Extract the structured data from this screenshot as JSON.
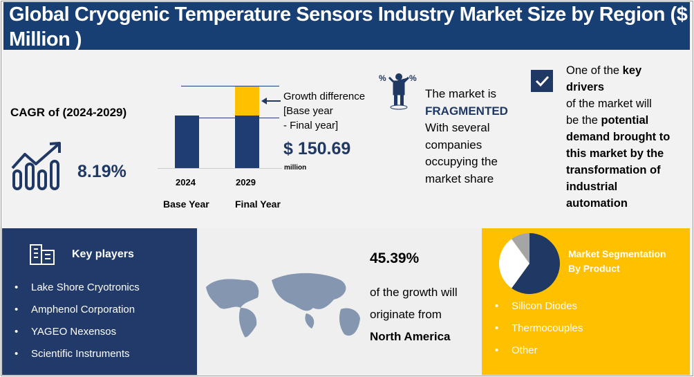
{
  "title": "Global Cryogenic Temperature Sensors Industry Market Size by Region ($ Million )",
  "cagr": {
    "label": "CAGR of (2024-2029)",
    "value": "8.19%"
  },
  "growth_chart": {
    "bars": [
      {
        "year": "2024",
        "label": "Base Year"
      },
      {
        "year": "2029",
        "label": "Final Year"
      }
    ],
    "note": [
      "Growth difference",
      "[Base year",
      "- Final year]"
    ],
    "value": "$ 150.69",
    "unit": "million"
  },
  "market": {
    "line1": "The market is",
    "status": "FRAGMENTED",
    "rest": [
      "With several",
      "companies",
      "occupying the",
      "market share"
    ]
  },
  "drivers": {
    "l1a": "One of the ",
    "l1b": "key",
    "l2": "drivers",
    "l3": "of the market will",
    "l4a": "be the ",
    "l4b": "potential",
    "l5": "demand brought to",
    "l6": "this market by the",
    "l7": "transformation of",
    "l8": "industrial",
    "l9": "automation"
  },
  "key_players": {
    "title": "Key players",
    "items": [
      "Lake Shore Cryotronics",
      "Amphenol Corporation",
      "YAGEO Nexensos",
      "Scientific Instruments"
    ]
  },
  "growth": {
    "percent": "45.39%",
    "l1": "of the growth will",
    "l2": "originate from",
    "region": "North America"
  },
  "segmentation": {
    "title1": "Market Segmentation",
    "title2": "By Product",
    "items": [
      "Silicon Diodes",
      "Thermocouples",
      "Other"
    ],
    "colors": {
      "dark": "#1f3864",
      "white": "#ffffff",
      "gray": "#a5a5a5"
    }
  }
}
